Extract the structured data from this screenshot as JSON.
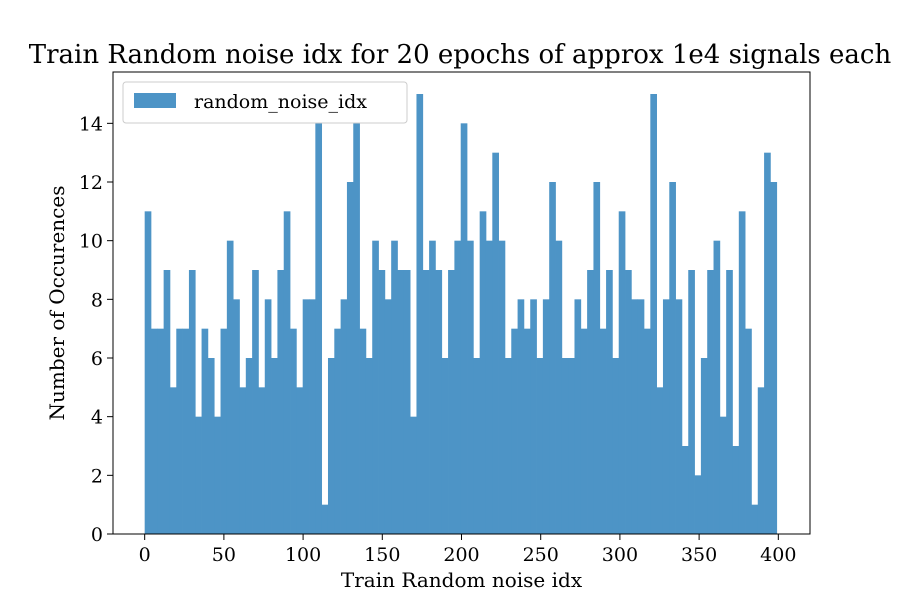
{
  "chart_data": {
    "type": "bar",
    "title": "Train Random noise idx for 20 epochs of approx 1e4 signals each",
    "xlabel": "Train Random noise idx",
    "ylabel": "Number of Occurences",
    "xlim": [
      -20,
      420
    ],
    "ylim": [
      0,
      15.75
    ],
    "xticks": [
      0,
      50,
      100,
      150,
      200,
      250,
      300,
      350,
      400
    ],
    "yticks": [
      0,
      2,
      4,
      6,
      8,
      10,
      12,
      14
    ],
    "bin_start": 0,
    "bin_width": 3.99,
    "series": [
      {
        "name": "random_noise_idx",
        "color": "#4d94c6",
        "values": [
          11,
          7,
          7,
          9,
          5,
          7,
          7,
          9,
          4,
          7,
          6,
          4,
          7,
          10,
          8,
          5,
          6,
          9,
          5,
          8,
          6,
          9,
          11,
          7,
          5,
          8,
          8,
          14,
          1,
          6,
          7,
          8,
          12,
          14,
          7,
          6,
          10,
          9,
          8,
          10,
          9,
          9,
          4,
          15,
          9,
          10,
          9,
          6,
          9,
          10,
          14,
          10,
          6,
          11,
          10,
          13,
          10,
          6,
          7,
          8,
          7,
          8,
          6,
          8,
          12,
          10,
          6,
          6,
          8,
          7,
          9,
          12,
          7,
          9,
          6,
          11,
          9,
          8,
          8,
          7,
          15,
          5,
          8,
          12,
          8,
          3,
          9,
          2,
          6,
          9,
          10,
          4,
          9,
          3,
          11,
          7,
          1,
          5,
          13,
          12
        ]
      }
    ],
    "legend": {
      "position": "top-left",
      "entries": [
        "random_noise_idx"
      ]
    },
    "grid": false
  }
}
